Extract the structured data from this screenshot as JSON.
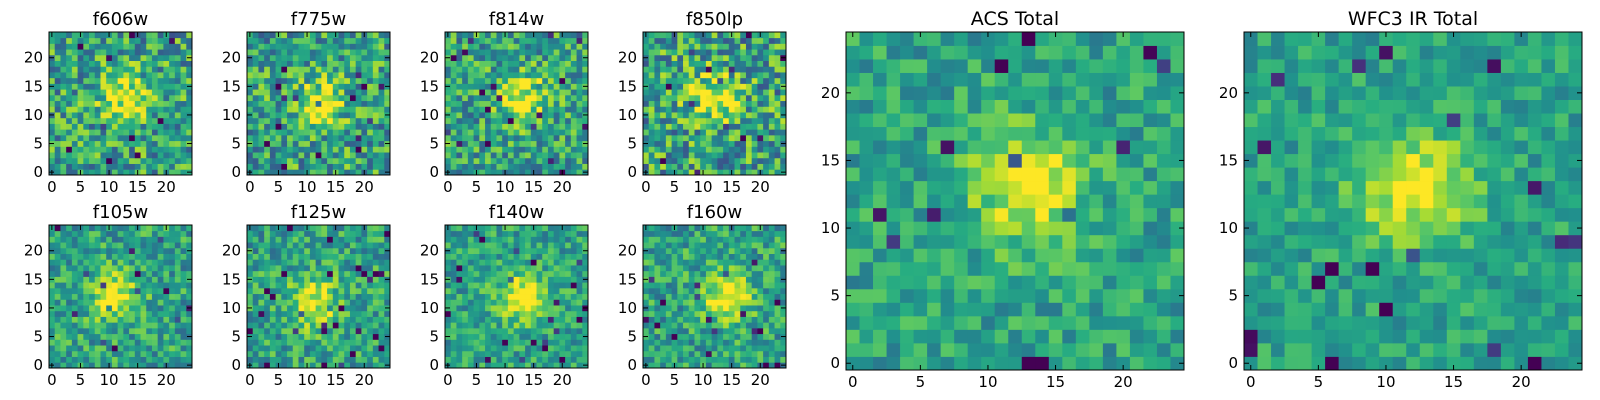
{
  "chart_data": [
    {
      "type": "heatmap",
      "title": "f606w",
      "grid_size": 25,
      "xticks": [
        "0",
        "5",
        "10",
        "15",
        "20"
      ],
      "yticks": [
        "0",
        "5",
        "10",
        "15",
        "20"
      ],
      "colormap": "viridis",
      "source_peak": [
        13,
        13
      ],
      "noise": 0.6,
      "seed": 11
    },
    {
      "type": "heatmap",
      "title": "f775w",
      "grid_size": 25,
      "xticks": [
        "0",
        "5",
        "10",
        "15",
        "20"
      ],
      "yticks": [
        "0",
        "5",
        "10",
        "15",
        "20"
      ],
      "colormap": "viridis",
      "source_peak": [
        12,
        12
      ],
      "noise": 0.6,
      "seed": 23
    },
    {
      "type": "heatmap",
      "title": "f814w",
      "grid_size": 25,
      "xticks": [
        "0",
        "5",
        "10",
        "15",
        "20"
      ],
      "yticks": [
        "0",
        "5",
        "10",
        "15",
        "20"
      ],
      "colormap": "viridis",
      "source_peak": [
        13,
        13
      ],
      "noise": 0.55,
      "seed": 37
    },
    {
      "type": "heatmap",
      "title": "f850lp",
      "grid_size": 25,
      "xticks": [
        "0",
        "5",
        "10",
        "15",
        "20"
      ],
      "yticks": [
        "0",
        "5",
        "10",
        "15",
        "20"
      ],
      "colormap": "viridis",
      "source_peak": [
        12,
        13
      ],
      "noise": 0.65,
      "seed": 41
    },
    {
      "type": "heatmap",
      "title": "f105w",
      "grid_size": 25,
      "xticks": [
        "0",
        "5",
        "10",
        "15",
        "20"
      ],
      "yticks": [
        "0",
        "5",
        "10",
        "15",
        "20"
      ],
      "colormap": "viridis",
      "source_peak": [
        11,
        12
      ],
      "noise": 0.45,
      "seed": 53
    },
    {
      "type": "heatmap",
      "title": "f125w",
      "grid_size": 25,
      "xticks": [
        "0",
        "5",
        "10",
        "15",
        "20"
      ],
      "yticks": [
        "0",
        "5",
        "10",
        "15",
        "20"
      ],
      "colormap": "viridis",
      "source_peak": [
        11,
        11
      ],
      "noise": 0.45,
      "seed": 67
    },
    {
      "type": "heatmap",
      "title": "f140w",
      "grid_size": 25,
      "xticks": [
        "0",
        "5",
        "10",
        "15",
        "20"
      ],
      "yticks": [
        "0",
        "5",
        "10",
        "15",
        "20"
      ],
      "colormap": "viridis",
      "source_peak": [
        13,
        12
      ],
      "noise": 0.4,
      "seed": 71
    },
    {
      "type": "heatmap",
      "title": "f160w",
      "grid_size": 25,
      "xticks": [
        "0",
        "5",
        "10",
        "15",
        "20"
      ],
      "yticks": [
        "0",
        "5",
        "10",
        "15",
        "20"
      ],
      "colormap": "viridis",
      "source_peak": [
        14,
        12
      ],
      "noise": 0.45,
      "seed": 83
    },
    {
      "type": "heatmap",
      "title": "ACS Total",
      "grid_size": 25,
      "xticks": [
        "0",
        "5",
        "10",
        "15",
        "20"
      ],
      "yticks": [
        "0",
        "5",
        "10",
        "15",
        "20"
      ],
      "colormap": "viridis",
      "source_peak": [
        13,
        13
      ],
      "noise": 0.35,
      "seed": 97
    },
    {
      "type": "heatmap",
      "title": "WFC3 IR Total",
      "grid_size": 25,
      "xticks": [
        "0",
        "5",
        "10",
        "15",
        "20"
      ],
      "yticks": [
        "0",
        "5",
        "10",
        "15",
        "20"
      ],
      "colormap": "viridis",
      "source_peak": [
        12,
        13
      ],
      "noise": 0.3,
      "seed": 101
    }
  ]
}
